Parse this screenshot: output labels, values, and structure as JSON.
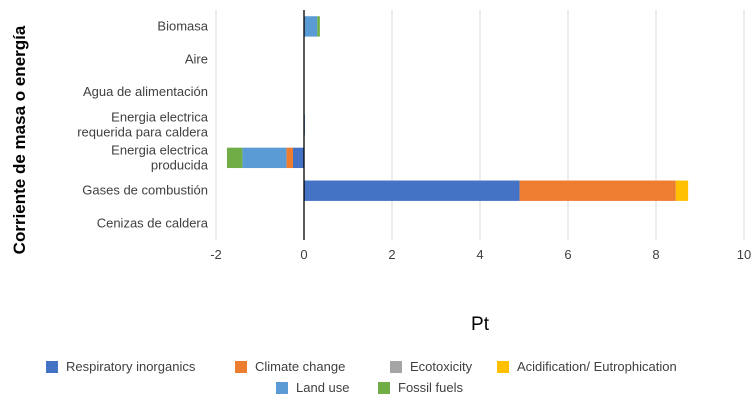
{
  "chart_data": {
    "type": "bar",
    "orientation": "horizontal",
    "stacked": true,
    "categories": [
      [
        "Biomasa"
      ],
      [
        "Aire"
      ],
      [
        "Agua de alimentación"
      ],
      [
        "Energia electrica",
        "requerida para caldera"
      ],
      [
        "Energia electrica",
        "producida"
      ],
      [
        "Gases de combustión"
      ],
      [
        "Cenizas de caldera"
      ]
    ],
    "series": [
      {
        "name": "Respiratory inorganics",
        "color": "#4472C4",
        "values": [
          0.02,
          0,
          0,
          0,
          -0.25,
          4.9,
          0
        ]
      },
      {
        "name": "Climate change",
        "color": "#ED7D31",
        "values": [
          0,
          0,
          0,
          0,
          -0.15,
          3.55,
          0
        ]
      },
      {
        "name": "Ecotoxicity",
        "color": "#A5A5A5",
        "values": [
          0,
          0,
          0,
          0,
          0,
          0,
          0
        ]
      },
      {
        "name": "Acidification/ Eutrophication",
        "color": "#FFC000",
        "values": [
          0,
          0,
          0,
          0,
          0,
          0.28,
          0
        ]
      },
      {
        "name": "Land use",
        "color": "#5B9BD5",
        "values": [
          0.28,
          0,
          0,
          0.02,
          -1.0,
          0,
          0
        ]
      },
      {
        "name": "Fossil fuels",
        "color": "#70AD47",
        "values": [
          0.06,
          0,
          0,
          0,
          -0.35,
          0,
          0
        ]
      }
    ],
    "xlabel": "Pt",
    "ylabel": "Corriente de masa o energía",
    "xlim": [
      -2,
      10
    ],
    "xticks": [
      "-2",
      "0",
      "2",
      "4",
      "6",
      "8",
      "10"
    ],
    "grid": "vertical",
    "legend_position": "bottom"
  }
}
